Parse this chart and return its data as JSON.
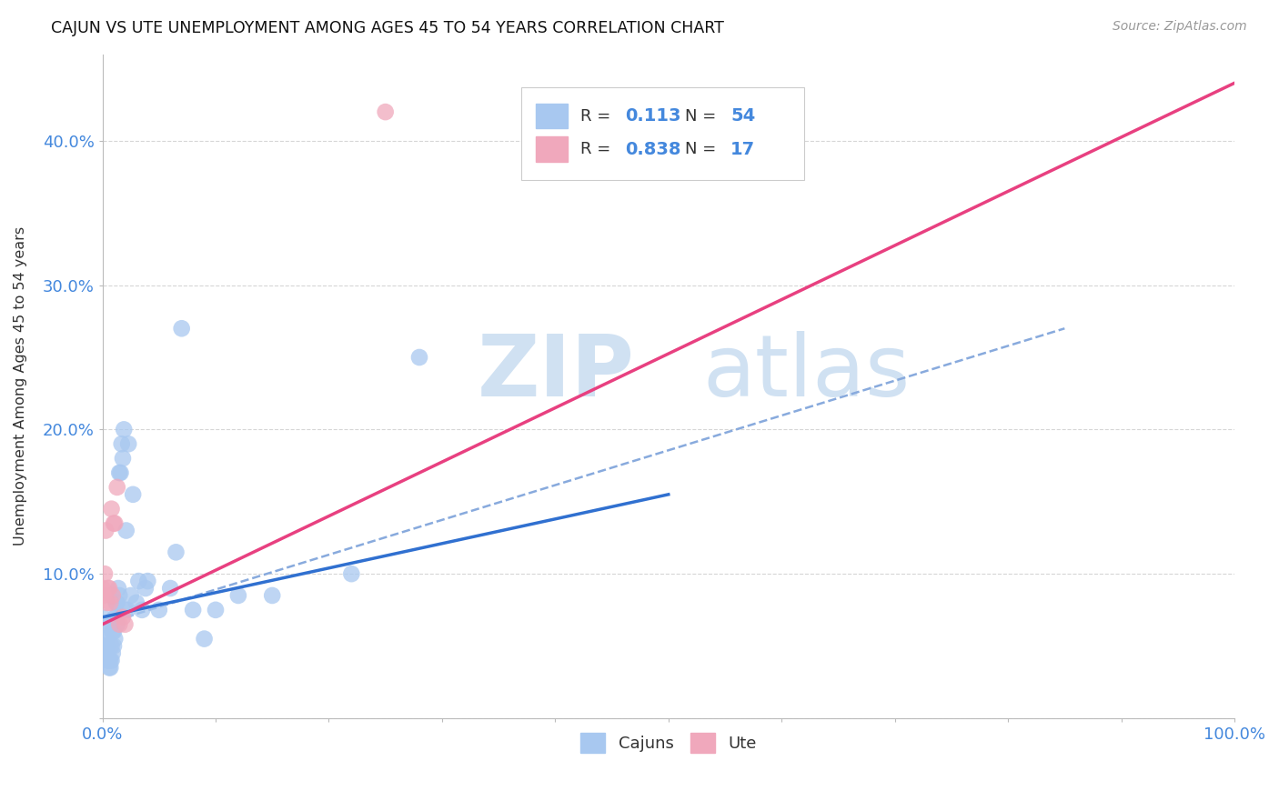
{
  "title": "CAJUN VS UTE UNEMPLOYMENT AMONG AGES 45 TO 54 YEARS CORRELATION CHART",
  "source": "Source: ZipAtlas.com",
  "ylabel": "Unemployment Among Ages 45 to 54 years",
  "xlim": [
    0,
    1.0
  ],
  "ylim": [
    0,
    0.46
  ],
  "xticks": [
    0.0,
    0.1,
    0.2,
    0.3,
    0.4,
    0.5,
    0.6,
    0.7,
    0.8,
    0.9,
    1.0
  ],
  "xticklabels": [
    "0.0%",
    "",
    "",
    "",
    "",
    "",
    "",
    "",
    "",
    "",
    "100.0%"
  ],
  "yticks": [
    0.0,
    0.1,
    0.2,
    0.3,
    0.4
  ],
  "yticklabels": [
    "",
    "10.0%",
    "20.0%",
    "30.0%",
    "40.0%"
  ],
  "cajun_color": "#A8C8F0",
  "ute_color": "#F0A8BC",
  "cajun_line_color": "#3070D0",
  "ute_line_color": "#E84080",
  "dash_color": "#88AADD",
  "legend_R_cajun": "0.113",
  "legend_N_cajun": "54",
  "legend_R_ute": "0.838",
  "legend_N_ute": "17",
  "watermark_zip": "ZIP",
  "watermark_atlas": "atlas",
  "bg_color": "#FFFFFF",
  "grid_color": "#CCCCCC",
  "cajun_x": [
    0.0,
    0.001,
    0.002,
    0.003,
    0.003,
    0.004,
    0.004,
    0.005,
    0.005,
    0.006,
    0.006,
    0.007,
    0.007,
    0.008,
    0.008,
    0.009,
    0.009,
    0.01,
    0.01,
    0.011,
    0.011,
    0.012,
    0.012,
    0.013,
    0.013,
    0.014,
    0.015,
    0.015,
    0.016,
    0.017,
    0.018,
    0.019,
    0.02,
    0.021,
    0.022,
    0.023,
    0.025,
    0.027,
    0.03,
    0.032,
    0.035,
    0.038,
    0.04,
    0.05,
    0.06,
    0.065,
    0.07,
    0.08,
    0.09,
    0.1,
    0.12,
    0.15,
    0.22,
    0.28
  ],
  "cajun_y": [
    0.07,
    0.065,
    0.06,
    0.055,
    0.05,
    0.05,
    0.045,
    0.04,
    0.04,
    0.04,
    0.035,
    0.035,
    0.04,
    0.04,
    0.05,
    0.045,
    0.06,
    0.05,
    0.06,
    0.055,
    0.07,
    0.07,
    0.08,
    0.065,
    0.08,
    0.09,
    0.085,
    0.17,
    0.17,
    0.19,
    0.18,
    0.2,
    0.075,
    0.13,
    0.075,
    0.19,
    0.085,
    0.155,
    0.08,
    0.095,
    0.075,
    0.09,
    0.095,
    0.075,
    0.09,
    0.115,
    0.27,
    0.075,
    0.055,
    0.075,
    0.085,
    0.085,
    0.1,
    0.25
  ],
  "ute_x": [
    0.0,
    0.001,
    0.002,
    0.003,
    0.004,
    0.005,
    0.006,
    0.007,
    0.008,
    0.009,
    0.01,
    0.011,
    0.013,
    0.015,
    0.018,
    0.02,
    0.25
  ],
  "ute_y": [
    0.09,
    0.085,
    0.1,
    0.13,
    0.08,
    0.09,
    0.09,
    0.08,
    0.145,
    0.085,
    0.135,
    0.135,
    0.16,
    0.065,
    0.07,
    0.065,
    0.42
  ],
  "cajun_trendline": [
    [
      0.0,
      0.07
    ],
    [
      0.5,
      0.155
    ]
  ],
  "ute_trendline": [
    [
      0.0,
      0.065
    ],
    [
      1.0,
      0.44
    ]
  ],
  "dash_trendline": [
    [
      0.0,
      0.065
    ],
    [
      0.85,
      0.27
    ]
  ]
}
